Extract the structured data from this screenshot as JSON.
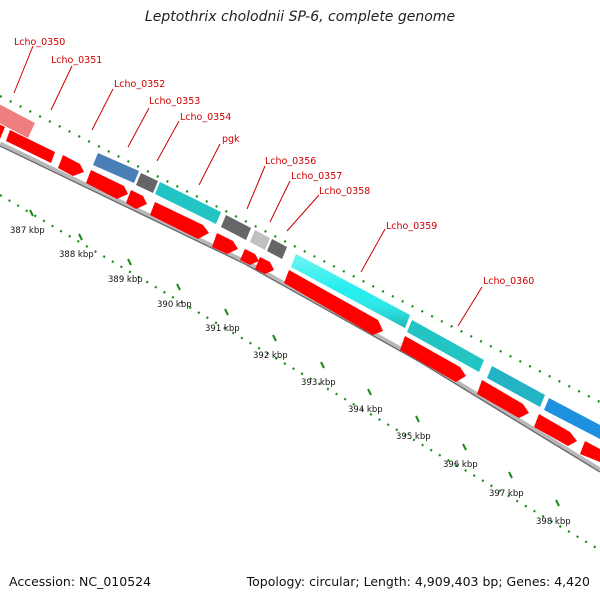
{
  "title": "Leptothrix cholodnii SP-6, complete genome",
  "footer": {
    "accession": "Accession: NC_010524",
    "info": "Topology: circular; Length: 4,909,403 bp; Genes: 4,420"
  },
  "colors": {
    "cds": "#ff0000",
    "gene_label": "#cc0000",
    "tick_green": "#1a8a1a",
    "backbone": "#888888"
  },
  "kbp_labels": [
    "387 kbp",
    "388 kbp",
    "389 kbp",
    "390 kbp",
    "391 kbp",
    "392 kbp",
    "393 kbp",
    "394 kbp",
    "395 kbp",
    "396 kbp",
    "397 kbp",
    "398 kbp"
  ],
  "genes": [
    {
      "name": "Lcho_0350",
      "color": "#ef7f7f"
    },
    {
      "name": "Lcho_0351",
      "color": "#ef7f7f"
    },
    {
      "name": "Lcho_0352",
      "color": "#4a7fb5"
    },
    {
      "name": "Lcho_0353",
      "color": "#666666"
    },
    {
      "name": "Lcho_0354",
      "color": "#22c4c4"
    },
    {
      "name": "pgk",
      "color": "#666666"
    },
    {
      "name": "Lcho_0356",
      "color": "#c0c0c0"
    },
    {
      "name": "Lcho_0357",
      "color": "#666666"
    },
    {
      "name": "Lcho_0358",
      "color": "#22eeee"
    },
    {
      "name": "Lcho_0359",
      "color": "#22eeee"
    },
    {
      "name": "Lcho_0360",
      "color": "#22c4c4"
    },
    {
      "name": "",
      "color": "#22b4c4"
    },
    {
      "name": "",
      "color": "#1e90e0"
    }
  ]
}
